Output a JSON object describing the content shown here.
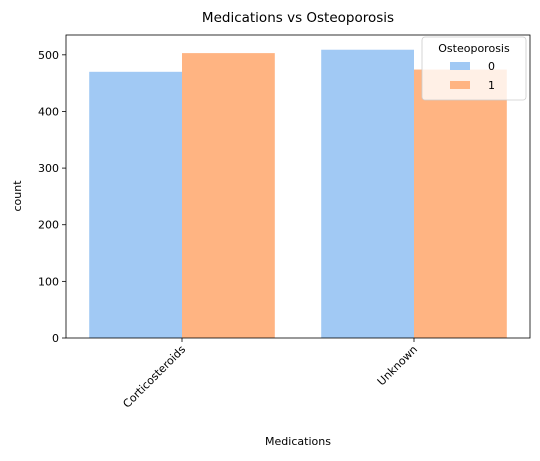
{
  "chart_data": {
    "type": "bar",
    "title": "Medications vs Osteoporosis",
    "xlabel": "Medications",
    "ylabel": "count",
    "categories": [
      "Corticosteroids",
      "Unknown"
    ],
    "series": [
      {
        "name": "0",
        "values": [
          470,
          509
        ],
        "color": "#a1c9f4"
      },
      {
        "name": "1",
        "values": [
          503,
          474
        ],
        "color": "#ffb482"
      }
    ],
    "ylim": [
      0,
      535
    ],
    "yticks": [
      "0",
      "100",
      "200",
      "300",
      "400",
      "500"
    ],
    "legend": {
      "title": "Osteoporosis",
      "position": "top-right"
    },
    "grid": false
  }
}
